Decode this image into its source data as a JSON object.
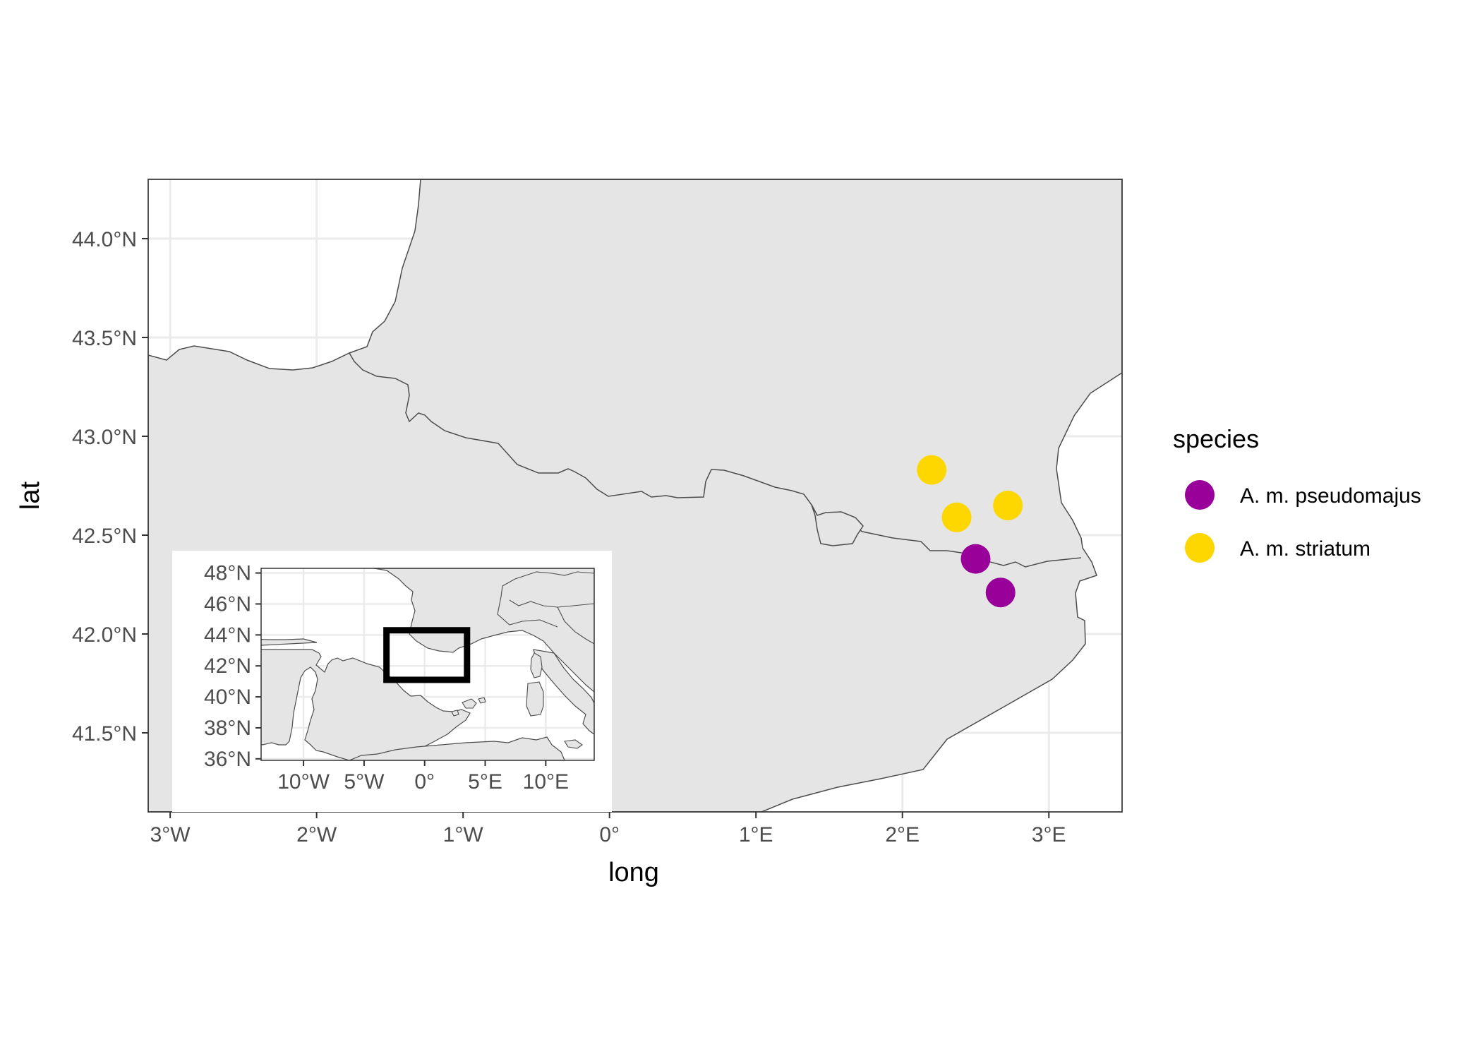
{
  "colors": {
    "land": "#e5e5e5",
    "border": "#4d4d4d",
    "grid": "#ebebeb",
    "sea": "#ffffff"
  },
  "chart_data": {
    "type": "scatter",
    "xlabel": "long",
    "ylabel": "lat",
    "xlim": [
      -3.15,
      3.5
    ],
    "ylim": [
      41.1,
      44.3
    ],
    "x_ticks": [
      {
        "value": -3,
        "label": "3°W"
      },
      {
        "value": -2,
        "label": "2°W"
      },
      {
        "value": -1,
        "label": "1°W"
      },
      {
        "value": 0,
        "label": "0°"
      },
      {
        "value": 1,
        "label": "1°E"
      },
      {
        "value": 2,
        "label": "2°E"
      },
      {
        "value": 3,
        "label": "3°E"
      }
    ],
    "y_ticks": [
      {
        "value": 41.5,
        "label": "41.5°N"
      },
      {
        "value": 42.0,
        "label": "42.0°N"
      },
      {
        "value": 42.5,
        "label": "42.5°N"
      },
      {
        "value": 43.0,
        "label": "43.0°N"
      },
      {
        "value": 43.5,
        "label": "43.5°N"
      },
      {
        "value": 44.0,
        "label": "44.0°N"
      }
    ],
    "grid": true,
    "legend": {
      "title": "species",
      "position": "right",
      "entries": [
        {
          "label": "A. m. pseudomajus",
          "color": "#990099"
        },
        {
          "label": "A. m. striatum",
          "color": "#ffd700"
        }
      ]
    },
    "series": [
      {
        "name": "A. m. pseudomajus",
        "color": "#990099",
        "points": [
          {
            "x": 2.5,
            "y": 42.38
          },
          {
            "x": 2.67,
            "y": 42.21
          }
        ]
      },
      {
        "name": "A. m. striatum",
        "color": "#ffd700",
        "points": [
          {
            "x": 2.2,
            "y": 42.83
          },
          {
            "x": 2.37,
            "y": 42.59
          },
          {
            "x": 2.72,
            "y": 42.65
          }
        ]
      }
    ]
  },
  "inset": {
    "xlim": [
      -13.5,
      14
    ],
    "ylim": [
      35.9,
      48.3
    ],
    "x_ticks": [
      {
        "value": -10,
        "label": "10°W"
      },
      {
        "value": -5,
        "label": "5°W"
      },
      {
        "value": 0,
        "label": "0°"
      },
      {
        "value": 5,
        "label": "5°E"
      },
      {
        "value": 10,
        "label": "10°E"
      }
    ],
    "y_ticks": [
      {
        "value": 36,
        "label": "36°N"
      },
      {
        "value": 38,
        "label": "38°N"
      },
      {
        "value": 40,
        "label": "40°N"
      },
      {
        "value": 42,
        "label": "42°N"
      },
      {
        "value": 44,
        "label": "44°N"
      },
      {
        "value": 46,
        "label": "46°N"
      },
      {
        "value": 48,
        "label": "48°N"
      }
    ],
    "extent_box": {
      "x0": -3.15,
      "x1": 3.5,
      "y0": 41.1,
      "y1": 44.3
    }
  }
}
